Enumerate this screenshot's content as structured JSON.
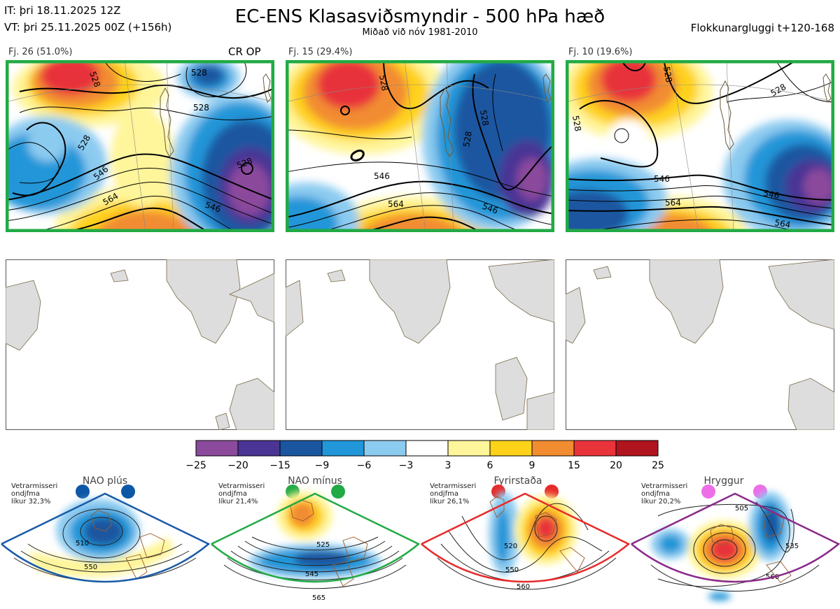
{
  "header": {
    "init_time": "IT: þri 18.11.2025 12Z",
    "valid_time": "VT: þri 25.11.2025 00Z  (+156h)",
    "title": "EC-ENS Klasasviðsmyndir - 500 hPa hæð",
    "subtitle": "Miðað við nóv 1981-2010",
    "window": "Flokkunargluggi t+120-168"
  },
  "clusters": [
    {
      "label": "Fj. 26 (51.0%)",
      "members": 26,
      "percent": 51.0,
      "tag": "CR OP",
      "frame_color": "#22aa44",
      "contour_labels": [
        "528",
        "528",
        "528",
        "528",
        "546",
        "564",
        "546",
        "528"
      ]
    },
    {
      "label": "Fj. 15 (29.4%)",
      "members": 15,
      "percent": 29.4,
      "tag": "",
      "frame_color": "#22aa44",
      "contour_labels": [
        "528",
        "546",
        "564",
        "546",
        "528",
        "528"
      ]
    },
    {
      "label": "Fj. 10 (19.6%)",
      "members": 10,
      "percent": 19.6,
      "tag": "",
      "frame_color": "#22aa44",
      "contour_labels": [
        "528",
        "528",
        "528",
        "546",
        "564",
        "546",
        "564"
      ]
    }
  ],
  "colorbar": {
    "ticks": [
      "-25",
      "-20",
      "-15",
      "-9",
      "-6",
      "-3",
      "3",
      "6",
      "9",
      "15",
      "20",
      "25"
    ],
    "colors": [
      "#8b4a9c",
      "#4a3595",
      "#1a56a0",
      "#2196d8",
      "#8ccbf0",
      "#ffffff",
      "#fff59a",
      "#ffd21a",
      "#f28c30",
      "#e8333a",
      "#b0141e"
    ]
  },
  "patterns": [
    {
      "name": "NAO plús",
      "info": [
        "Vetrarmisseri",
        "ondjfma",
        "líkur 32,3%"
      ],
      "color": "#1a5aa8",
      "dot_color": "#0d57a6",
      "labels": [
        "510",
        "550"
      ]
    },
    {
      "name": "NAO mínus",
      "info": [
        "Vetrarmisseri",
        "ondjfma",
        "líkur 21,4%"
      ],
      "color": "#22aa44",
      "dot_color": "#22aa44",
      "labels": [
        "525",
        "545",
        "565"
      ]
    },
    {
      "name": "Fyrirstaða",
      "info": [
        "Vetrarmisseri",
        "ondjfma",
        "líkur 26,1%"
      ],
      "color": "#e82a2a",
      "dot_color": "#e82a2a",
      "labels": [
        "520",
        "550",
        "560"
      ]
    },
    {
      "name": "Hryggur",
      "info": [
        "Vetrarmisseri",
        "ondjfma",
        "líkur 20,2%"
      ],
      "color": "#8a2a8a",
      "dot_color": "#ee6ee8",
      "labels": [
        "505",
        "535",
        "560"
      ]
    }
  ]
}
